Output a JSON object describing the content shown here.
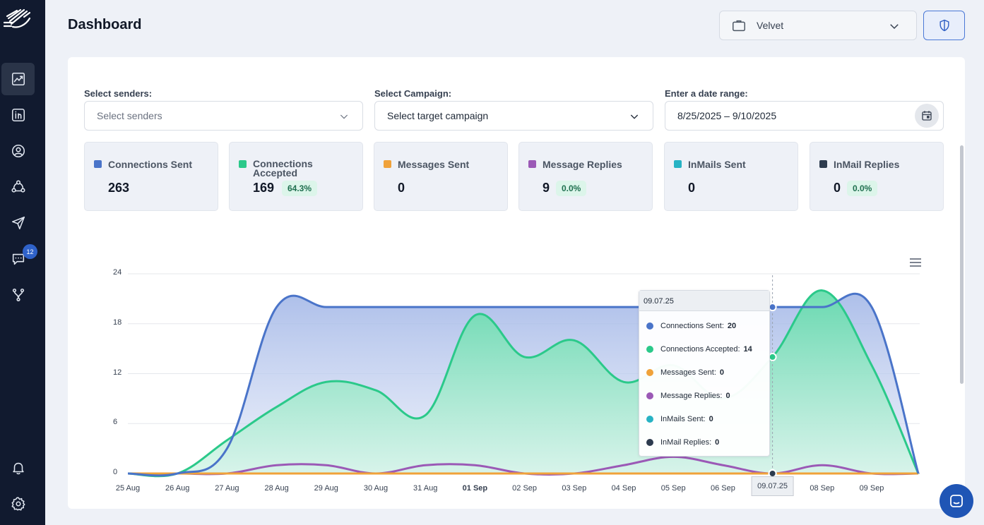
{
  "header": {
    "title": "Dashboard",
    "org_selector": "Velvet"
  },
  "sidebar": {
    "items": [
      {
        "icon": "chart-icon",
        "active": true
      },
      {
        "icon": "linkedin-icon"
      },
      {
        "icon": "user-icon"
      },
      {
        "icon": "network-icon"
      },
      {
        "icon": "send-icon"
      },
      {
        "icon": "messages-icon",
        "badge": "12"
      },
      {
        "icon": "integrations-icon"
      },
      {
        "icon": "bell-icon"
      },
      {
        "icon": "settings-icon"
      }
    ]
  },
  "filters": {
    "senders": {
      "label": "Select senders:",
      "placeholder": "Select senders"
    },
    "campaign": {
      "label": "Select Campaign:",
      "placeholder": "Select target campaign"
    },
    "date": {
      "label": "Enter a date range:",
      "value": "8/25/2025 – 9/10/2025"
    }
  },
  "stats": [
    {
      "label": "Connections Sent",
      "value": "263",
      "percent": "",
      "color": "#4a74c9"
    },
    {
      "label": "Connections Accepted",
      "value": "169",
      "percent": "64.3%",
      "color": "#2bc98a"
    },
    {
      "label": "Messages Sent",
      "value": "0",
      "percent": "",
      "color": "#f0a23a"
    },
    {
      "label": "Message Replies",
      "value": "9",
      "percent": "0.0%",
      "color": "#9b59b6"
    },
    {
      "label": "InMails Sent",
      "value": "0",
      "percent": "",
      "color": "#27b3c4"
    },
    {
      "label": "InMail Replies",
      "value": "0",
      "percent": "0.0%",
      "color": "#2d3b4e"
    }
  ],
  "tooltip": {
    "date": "09.07.25",
    "rows": [
      {
        "label": "Connections Sent:",
        "value": "20",
        "color": "#4a74c9"
      },
      {
        "label": "Connections Accepted:",
        "value": "14",
        "color": "#2bc98a"
      },
      {
        "label": "Messages Sent:",
        "value": "0",
        "color": "#f0a23a"
      },
      {
        "label": "Message Replies:",
        "value": "0",
        "color": "#9b59b6"
      },
      {
        "label": "InMails Sent:",
        "value": "0",
        "color": "#27b3c4"
      },
      {
        "label": "InMail Replies:",
        "value": "0",
        "color": "#2d3b4e"
      }
    ]
  },
  "chart_data": {
    "type": "area",
    "categories": [
      "25 Aug",
      "26 Aug",
      "27 Aug",
      "28 Aug",
      "29 Aug",
      "30 Aug",
      "31 Aug",
      "01 Sep",
      "02 Sep",
      "03 Sep",
      "04 Sep",
      "05 Sep",
      "06 Sep",
      "09.07.25",
      "08 Sep",
      "09 Sep"
    ],
    "highlight_category": "09.07.25",
    "bold_category": "01 Sep",
    "ylim": [
      0,
      24
    ],
    "yticks": [
      "0",
      "6",
      "12",
      "18",
      "24"
    ],
    "series": [
      {
        "name": "Connections Sent",
        "color": "#4a74c9",
        "values": [
          0,
          0,
          3,
          20,
          20,
          20,
          20,
          20,
          20,
          20,
          20,
          20,
          20,
          20,
          20,
          20
        ]
      },
      {
        "name": "Connections Accepted",
        "color": "#2bc98a",
        "values": [
          0,
          0,
          4,
          8,
          11,
          10,
          7,
          19,
          14,
          16,
          11,
          13,
          9,
          14,
          22,
          13
        ]
      },
      {
        "name": "Messages Sent",
        "color": "#f0a23a",
        "values": [
          0,
          0,
          0,
          0,
          0,
          0,
          0,
          0,
          0,
          0,
          0,
          0,
          0,
          0,
          0,
          0
        ]
      },
      {
        "name": "Message Replies",
        "color": "#9b59b6",
        "values": [
          0,
          0,
          0,
          1,
          1,
          0,
          1,
          1,
          0,
          0,
          1,
          2,
          1,
          0,
          1,
          0
        ]
      },
      {
        "name": "InMails Sent",
        "color": "#27b3c4",
        "values": [
          0,
          0,
          0,
          0,
          0,
          0,
          0,
          0,
          0,
          0,
          0,
          0,
          0,
          0,
          0,
          0
        ]
      },
      {
        "name": "InMail Replies",
        "color": "#2d3b4e",
        "values": [
          0,
          0,
          0,
          0,
          0,
          0,
          0,
          0,
          0,
          0,
          0,
          0,
          0,
          0,
          0,
          0
        ]
      }
    ]
  }
}
